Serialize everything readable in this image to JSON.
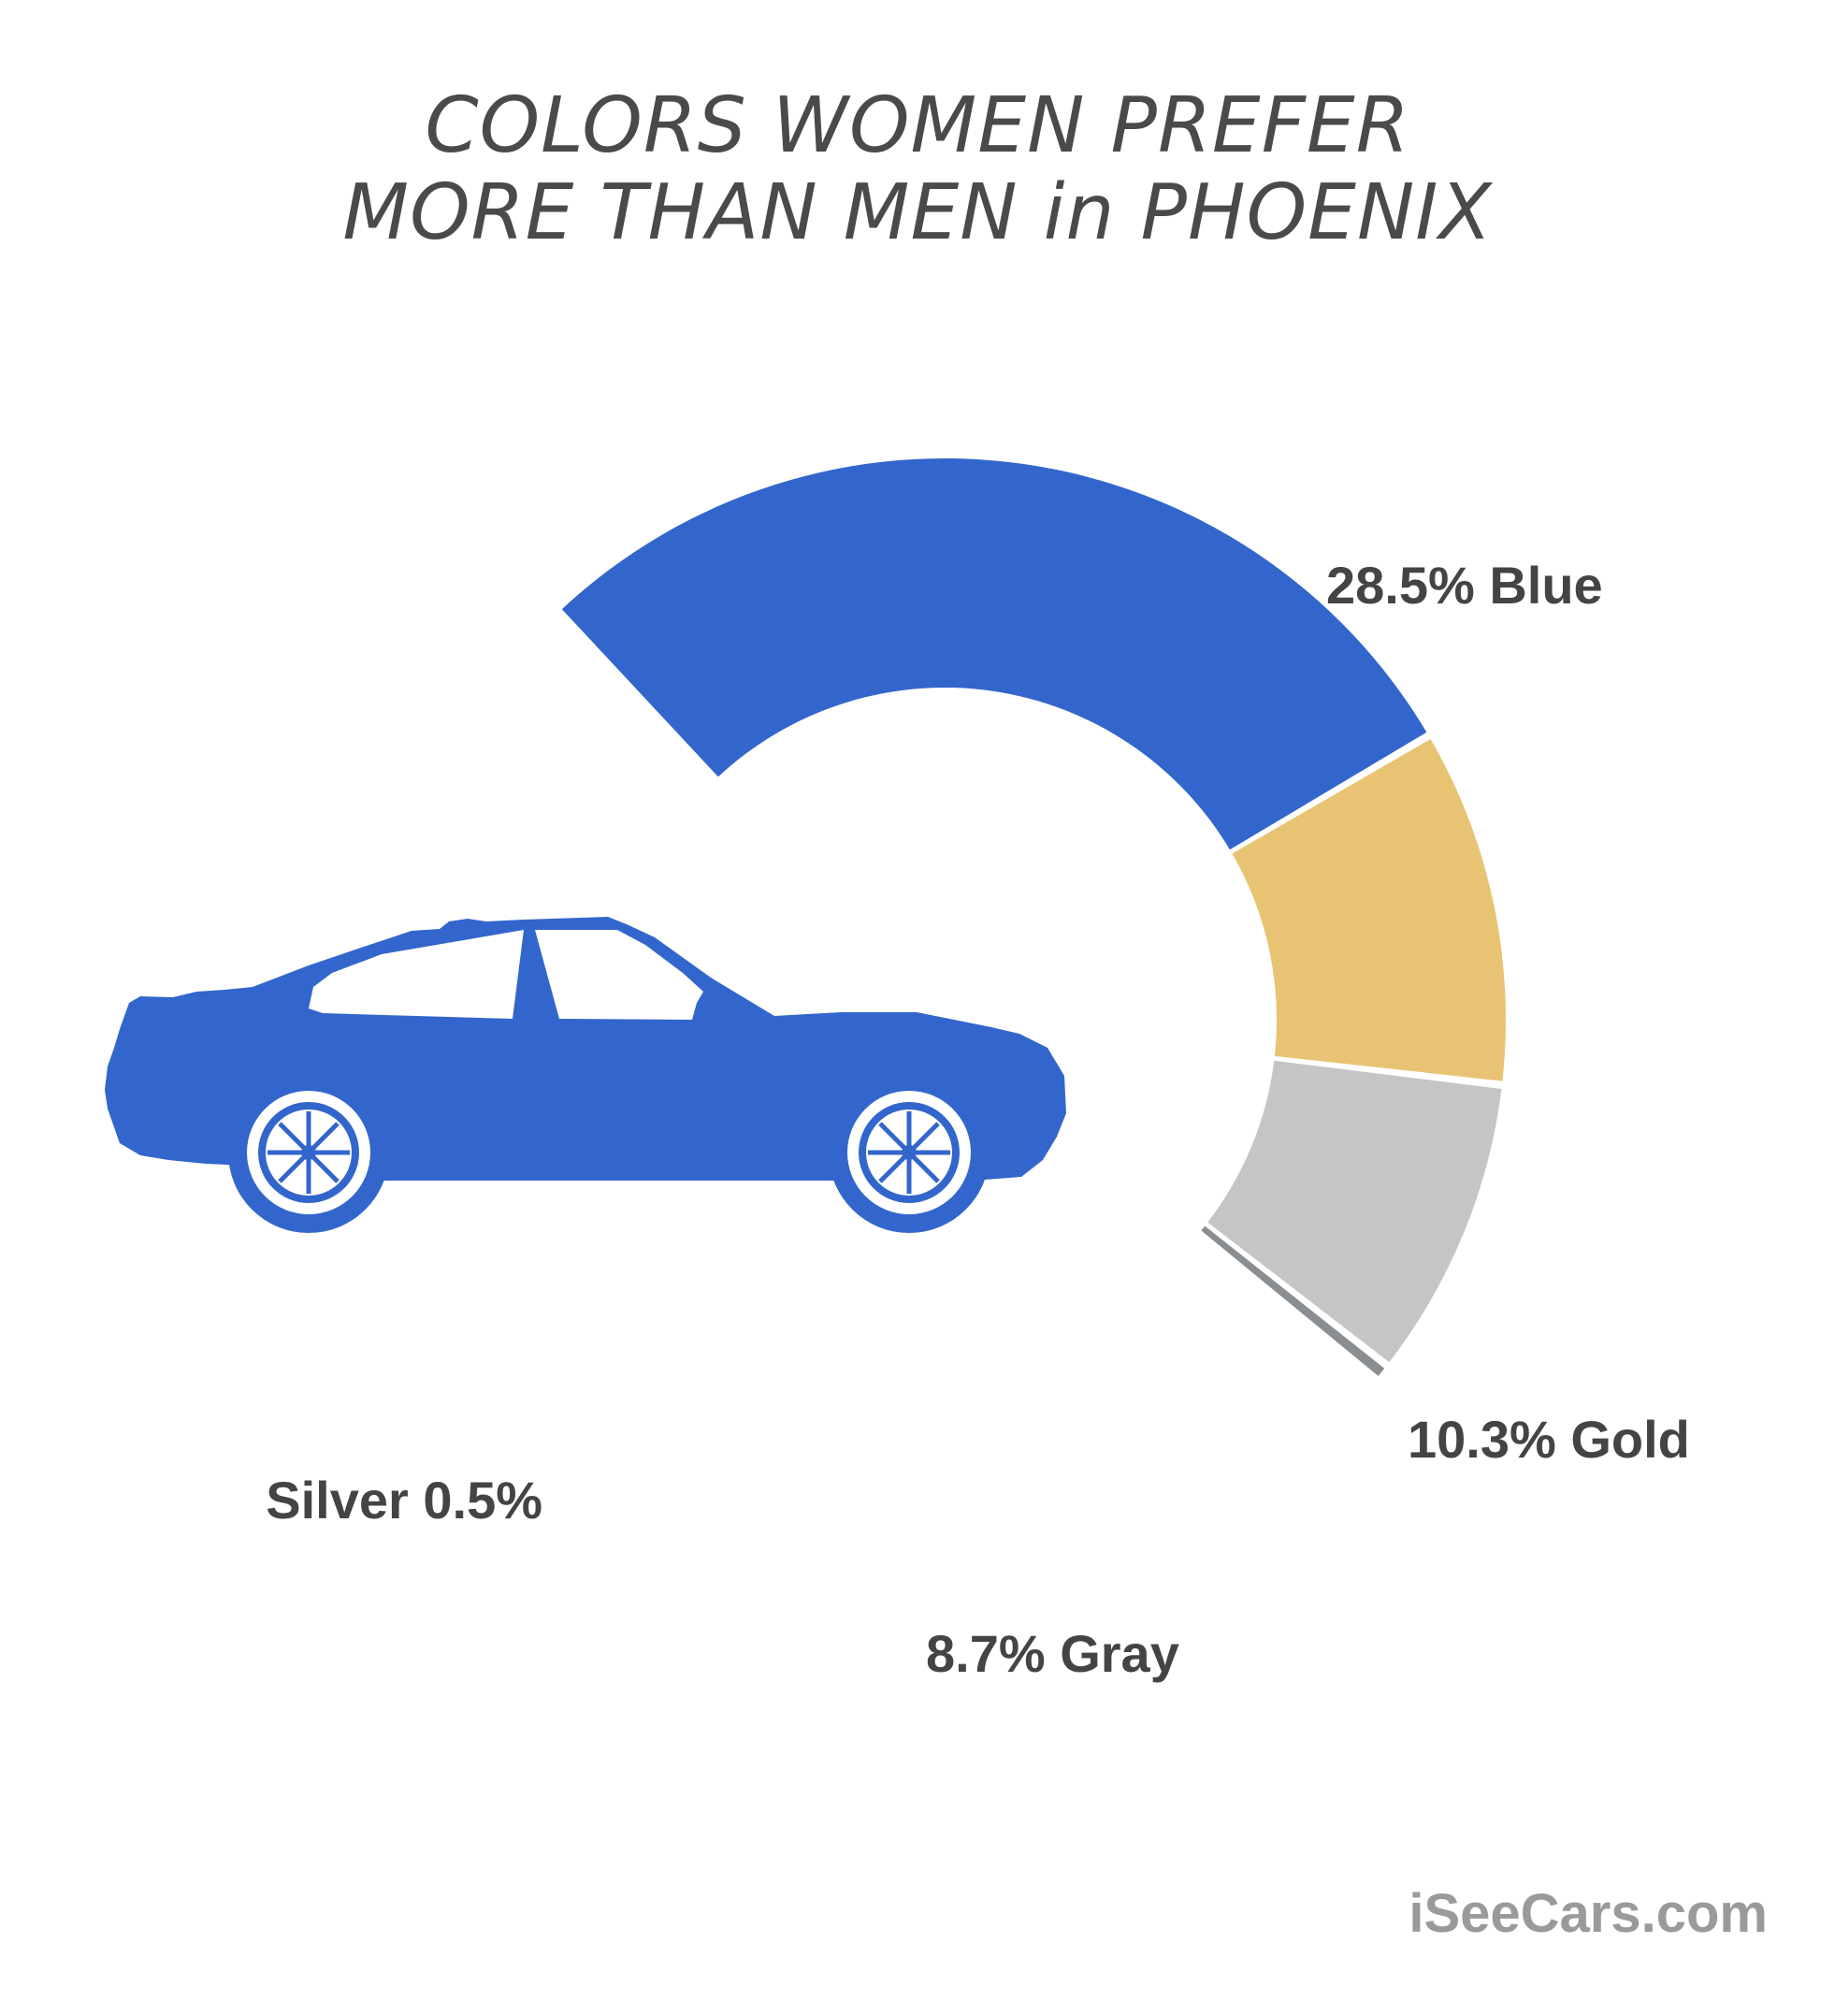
{
  "chart_data": {
    "type": "pie",
    "title_lines": [
      "COLORS WOMEN PREFER",
      "MORE THAN MEN in PHOENIX"
    ],
    "series": [
      {
        "name": "Blue",
        "label": "28.5% Blue",
        "value": 28.5,
        "color": "#3366cc"
      },
      {
        "name": "Gold",
        "label": "10.3% Gold",
        "value": 10.3,
        "color": "#e8c373"
      },
      {
        "name": "Gray",
        "label": "8.7% Gray",
        "value": 8.7,
        "color": "#c4c5c7"
      },
      {
        "name": "Silver",
        "label": "Silver 0.5%",
        "value": 0.5,
        "color": "#8a8d92"
      }
    ],
    "style": "donut with a car icon"
  },
  "credit": "iSeeCars.com",
  "icons": {
    "car": "car-silhouette-icon"
  },
  "colors": {
    "car": "#3366cc",
    "background": "#ffffff"
  }
}
